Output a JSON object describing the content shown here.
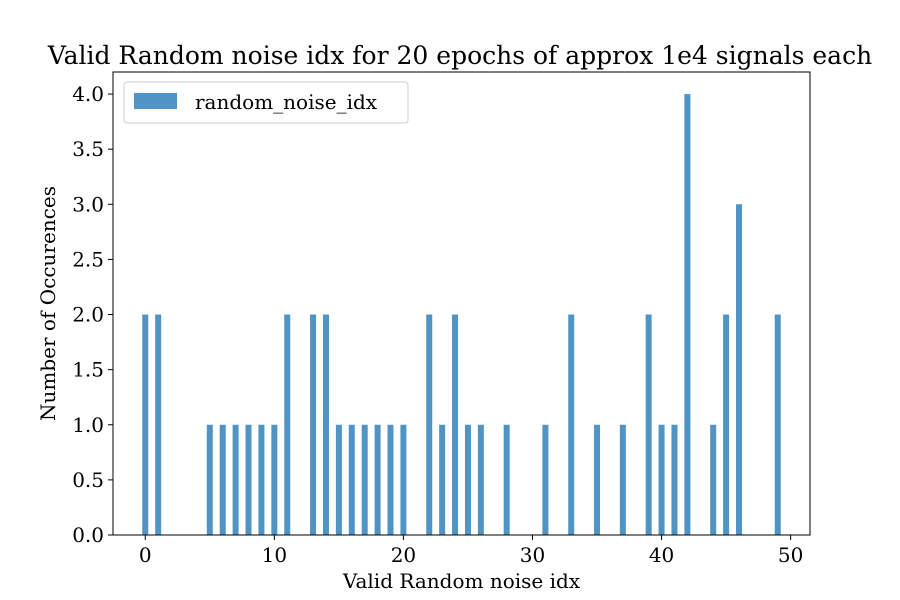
{
  "chart_data": {
    "type": "bar",
    "title": "Valid Random noise idx for 20 epochs of approx 1e4 signals each",
    "xlabel": "Valid Random noise idx",
    "ylabel": "Number of Occurences",
    "xlim": [
      -2.5,
      51.5
    ],
    "ylim": [
      0,
      4.2
    ],
    "xticks": [
      0,
      10,
      20,
      30,
      40,
      50
    ],
    "yticks": [
      0.0,
      0.5,
      1.0,
      1.5,
      2.0,
      2.5,
      3.0,
      3.5,
      4.0
    ],
    "xtick_labels": [
      "0",
      "10",
      "20",
      "30",
      "40",
      "50"
    ],
    "ytick_labels": [
      "0.0",
      "0.5",
      "1.0",
      "1.5",
      "2.0",
      "2.5",
      "3.0",
      "3.5",
      "4.0"
    ],
    "grid": false,
    "legend_position": "top-left",
    "series": [
      {
        "name": "random_noise_idx",
        "color": "#5094c5",
        "x": [
          0,
          1,
          5,
          6,
          7,
          8,
          9,
          10,
          11,
          13,
          14,
          15,
          16,
          17,
          18,
          19,
          20,
          22,
          23,
          24,
          25,
          26,
          28,
          31,
          33,
          35,
          37,
          39,
          40,
          41,
          42,
          44,
          45,
          46,
          49
        ],
        "values": [
          2,
          2,
          1,
          1,
          1,
          1,
          1,
          1,
          2,
          2,
          2,
          1,
          1,
          1,
          1,
          1,
          1,
          2,
          1,
          2,
          1,
          1,
          1,
          1,
          2,
          1,
          1,
          2,
          1,
          1,
          4,
          1,
          2,
          3,
          2
        ]
      }
    ]
  }
}
